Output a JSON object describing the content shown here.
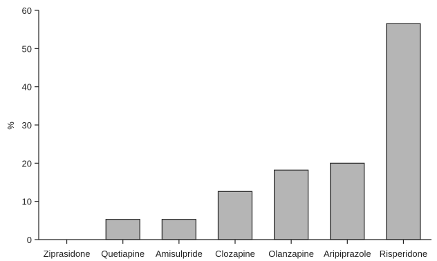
{
  "chart_data": {
    "type": "bar",
    "title": "",
    "xlabel": "",
    "ylabel": "%",
    "ylim": [
      0,
      60
    ],
    "yticks": [
      0,
      10,
      20,
      30,
      40,
      50,
      60
    ],
    "categories": [
      "Ziprasidone",
      "Quetiapine",
      "Amisulpride",
      "Clozapine",
      "Olanzapine",
      "Aripiprazole",
      "Risperidone"
    ],
    "values": [
      0,
      5.3,
      5.3,
      12.6,
      18.2,
      20.0,
      56.5
    ],
    "grid": false,
    "bar_color": "#b5b5b5",
    "axis_color": "#222222"
  }
}
